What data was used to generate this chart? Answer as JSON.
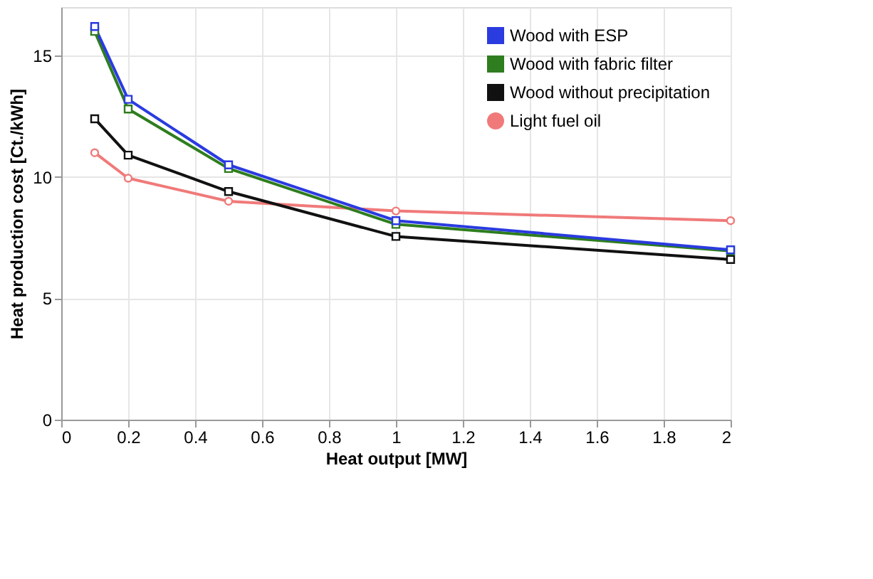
{
  "chart_data": {
    "type": "line",
    "xlabel": "Heat output  [MW]",
    "ylabel": "Heat production cost  [Ct./kWh]",
    "x": [
      0.1,
      0.2,
      0.5,
      1,
      2
    ],
    "series": [
      {
        "name": "Wood with ESP",
        "color": "#2a3be0",
        "marker": "square",
        "values": [
          16.2,
          13.2,
          10.5,
          8.2,
          7.0
        ]
      },
      {
        "name": "Wood with fabric filter",
        "color": "#2e7d1e",
        "marker": "square",
        "values": [
          16.0,
          12.8,
          10.35,
          8.05,
          6.95
        ]
      },
      {
        "name": "Wood without precipitation",
        "color": "#111111",
        "marker": "square",
        "values": [
          12.4,
          10.9,
          9.4,
          7.55,
          6.6
        ]
      },
      {
        "name": "Light fuel oil",
        "color": "#f07a7a",
        "marker": "circle",
        "values": [
          11.0,
          9.95,
          9.0,
          8.6,
          8.2
        ]
      }
    ],
    "xlim": [
      0,
      2
    ],
    "xticks": [
      0,
      0.2,
      0.4,
      0.6,
      0.8,
      1,
      1.2,
      1.4,
      1.6,
      1.8,
      2
    ],
    "ylim": [
      0,
      17
    ],
    "yticks": [
      0,
      5,
      10,
      15
    ],
    "grid": true,
    "legend": "top right",
    "line_style": "solid"
  }
}
